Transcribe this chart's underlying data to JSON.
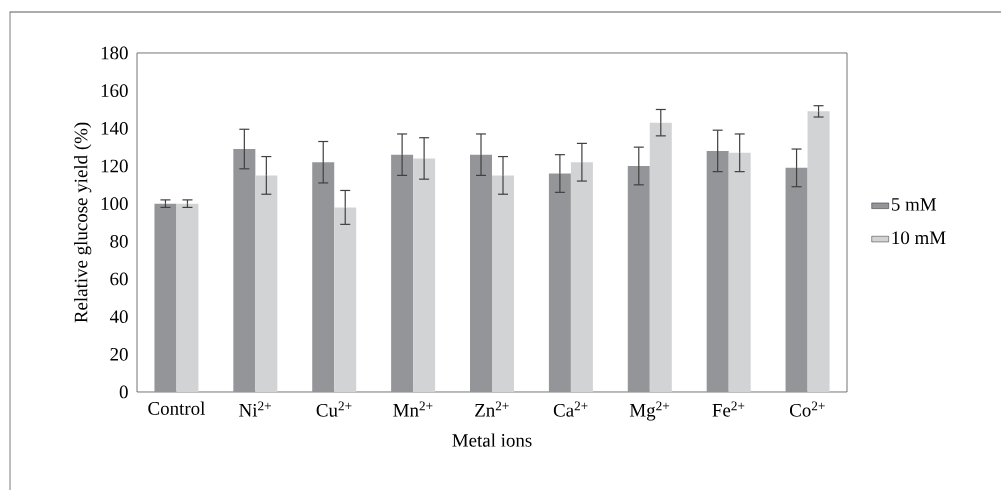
{
  "chart_data": {
    "type": "bar",
    "xlabel": "Metal ions",
    "ylabel": "Relative glucose yield (%)",
    "categories": [
      "Control",
      "Ni$^{2+}$",
      "Cu$^{2+}$",
      "Mn$^{2+}$",
      "Zn$^{2+}$",
      "Ca$^{2+}$",
      "Mg$^{2+}$",
      "Fe$^{2+}$",
      "Co$^{2+}$"
    ],
    "series": [
      {
        "name": "5 mM",
        "color": "#939598",
        "values": [
          100,
          129,
          122,
          126,
          126,
          116,
          120,
          128,
          119
        ],
        "errors": [
          2,
          10.5,
          11,
          11,
          11,
          10,
          10,
          11,
          10
        ]
      },
      {
        "name": "10 mM",
        "color": "#d1d3d4",
        "values": [
          100,
          115,
          98,
          124,
          115,
          122,
          143,
          127,
          149
        ],
        "errors": [
          2,
          10,
          9,
          11,
          10,
          10,
          7,
          10,
          3
        ]
      }
    ],
    "ylim": [
      0,
      180
    ],
    "yticks": [
      0,
      20,
      40,
      60,
      80,
      100,
      120,
      140,
      160,
      180
    ],
    "grid": false,
    "legend": "right"
  }
}
